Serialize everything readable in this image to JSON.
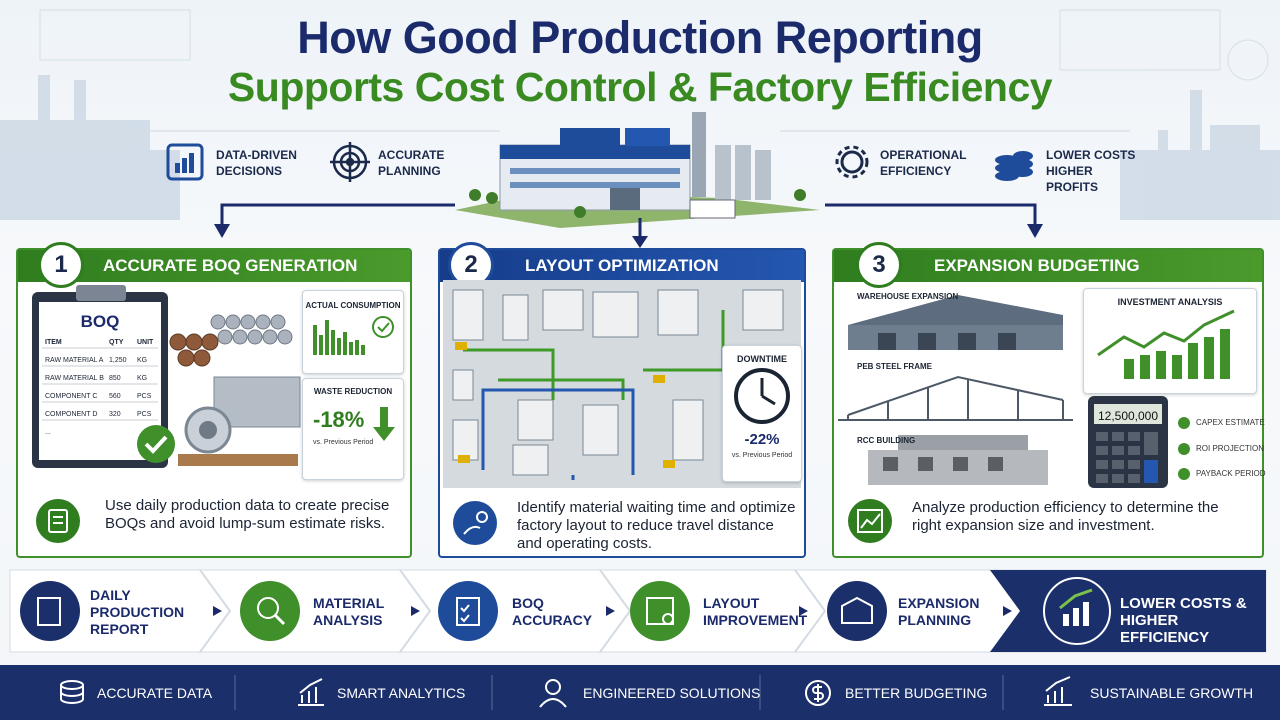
{
  "header": {
    "title": "How Good Production Reporting",
    "subtitle": "Supports Cost Control & Factory Efficiency"
  },
  "benefits": [
    "DATA-DRIVEN DECISIONS",
    "ACCURATE PLANNING",
    "OPERATIONAL EFFICIENCY",
    "LOWER COSTS HIGHER PROFITS"
  ],
  "panels": [
    {
      "number": "1",
      "title": "ACCURATE BOQ GENERATION",
      "boq": {
        "title": "BOQ",
        "headers": [
          "ITEM",
          "QTY",
          "UNIT"
        ],
        "rows": [
          [
            "RAW MATERIAL A",
            "1,250",
            "KG"
          ],
          [
            "RAW MATERIAL B",
            "850",
            "KG"
          ],
          [
            "COMPONENT C",
            "560",
            "PCS"
          ],
          [
            "COMPONENT D",
            "320",
            "PCS"
          ]
        ],
        "more": "..."
      },
      "consumption_label": "ACTUAL CONSUMPTION",
      "waste_label": "WASTE REDUCTION",
      "waste_value": "-18%",
      "waste_note": "vs. Previous Period",
      "description": "Use daily production data to create precise BOQs and avoid lump-sum estimate risks."
    },
    {
      "number": "2",
      "title": "LAYOUT OPTIMIZATION",
      "downtime_label": "DOWNTIME",
      "downtime_value": "-22%",
      "downtime_note": "vs. Previous Period",
      "description": "Identify material waiting time and optimize factory layout to reduce travel distance and operating costs."
    },
    {
      "number": "3",
      "title": "EXPANSION BUDGETING",
      "buildings": [
        "WAREHOUSE EXPANSION",
        "PEB STEEL FRAME",
        "RCC BUILDING"
      ],
      "analysis_label": "INVESTMENT ANALYSIS",
      "calculator": "12,500,000",
      "legend": [
        "CAPEX ESTIMATE",
        "ROI PROJECTION",
        "PAYBACK PERIOD"
      ],
      "description": "Analyze production efficiency to determine the right expansion size and investment."
    }
  ],
  "flow": {
    "steps": [
      "DAILY PRODUCTION REPORT",
      "MATERIAL ANALYSIS",
      "BOQ ACCURACY",
      "LAYOUT IMPROVEMENT",
      "EXPANSION PLANNING"
    ],
    "result": "LOWER COSTS & HIGHER EFFICIENCY"
  },
  "footer": [
    "ACCURATE DATA",
    "SMART ANALYTICS",
    "ENGINEERED SOLUTIONS",
    "BETTER BUDGETING",
    "SUSTAINABLE GROWTH"
  ]
}
